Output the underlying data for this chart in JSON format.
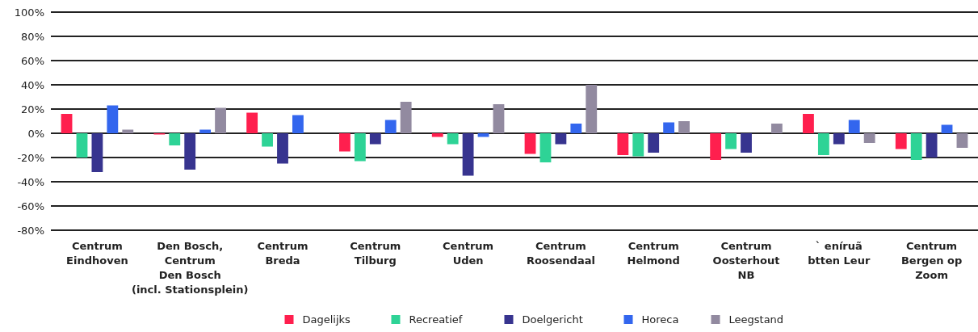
{
  "chart_data": {
    "type": "bar",
    "categories": [
      "Centrum\nEindhoven",
      "Den Bosch,\nCentrum\nDen Bosch\n(incl. Stationsplein)",
      "Centrum\nBreda",
      "Centrum\nTilburg",
      "Centrum\nUden",
      "Centrum\nRoosendaal",
      "Centrum\nHelmond",
      "Centrum\nOosterhout\nNB",
      "` eníruã\nbtten Leur",
      "Centrum\nBergen op\nZoom"
    ],
    "series": [
      {
        "name": "Dagelijks",
        "color": "#ff1f4e",
        "values": [
          16,
          -1,
          17,
          -15,
          -3,
          -17,
          -18,
          -22,
          16,
          -13
        ]
      },
      {
        "name": "Recreatief",
        "color": "#2ed396",
        "values": [
          -20,
          -10,
          -11,
          -23,
          -9,
          -24,
          -19,
          -13,
          -18,
          -22
        ]
      },
      {
        "name": "Doelgericht",
        "color": "#37348f",
        "values": [
          -32,
          -30,
          -25,
          -9,
          -35,
          -9,
          -16,
          -16,
          -9,
          -20
        ]
      },
      {
        "name": "Horeca",
        "color": "#3366ee",
        "values": [
          23,
          3,
          15,
          11,
          -3,
          8,
          9,
          0,
          11,
          7
        ]
      },
      {
        "name": "Leegstand",
        "color": "#928aa0",
        "values": [
          3,
          21,
          0,
          26,
          24,
          40,
          10,
          8,
          -8,
          -12
        ]
      }
    ],
    "ylim": [
      -80,
      100
    ],
    "yticks": [
      {
        "value": -80,
        "label": "-80%"
      },
      {
        "value": -60,
        "label": "-60%"
      },
      {
        "value": -40,
        "label": "-40%"
      },
      {
        "value": -20,
        "label": "-20%"
      },
      {
        "value": 0,
        "label": "0%"
      },
      {
        "value": 20,
        "label": "20%"
      },
      {
        "value": 40,
        "label": "40%"
      },
      {
        "value": 60,
        "label": "60%"
      },
      {
        "value": 80,
        "label": "80%"
      },
      {
        "value": 100,
        "label": "100%"
      }
    ],
    "grid": "y",
    "legend": "bottom"
  }
}
